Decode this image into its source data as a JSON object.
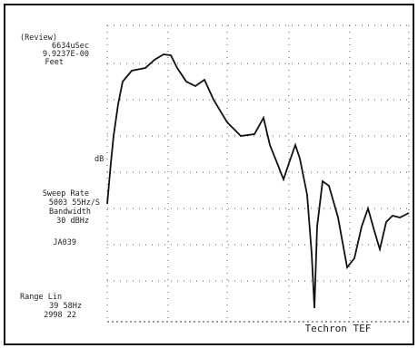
{
  "header": {
    "mode": "(Review)",
    "time": "6634uSec",
    "distance": "9.9237E-00",
    "unit": "Feet"
  },
  "axis": {
    "y_label": "dB"
  },
  "settings": {
    "sweep_label": "Sweep Rate",
    "sweep_value": "5003 55Hz/S",
    "bandwidth_label": "Bandwidth",
    "bandwidth_value": "30 dBHz",
    "id": "JA039",
    "range_label": "Range Lin",
    "range_low": "39 58Hz",
    "range_high": "2998 22"
  },
  "footer": {
    "brand": "Techron TEF"
  }
}
